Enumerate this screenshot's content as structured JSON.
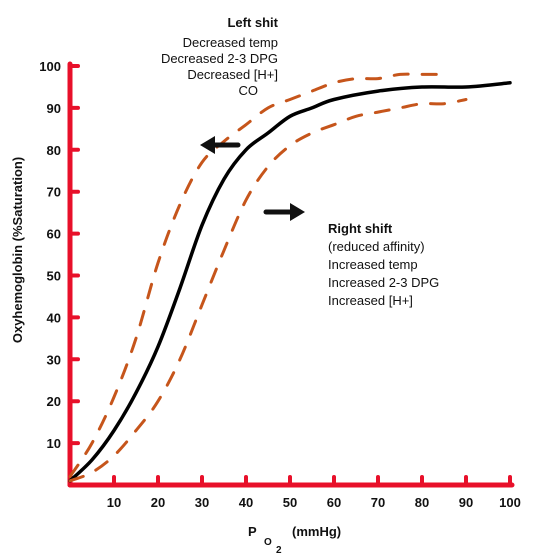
{
  "chart_data": {
    "type": "line",
    "ylabel": "Oxyhemoglobin (%Saturation)",
    "xlabel": {
      "main": "P",
      "subscript": "O",
      "sub2": "2",
      "unit": "(mmHg)"
    },
    "xlim": [
      0,
      100
    ],
    "ylim": [
      0,
      100
    ],
    "x_ticks": [
      "10",
      "20",
      "30",
      "40",
      "50",
      "60",
      "70",
      "80",
      "90",
      "100"
    ],
    "y_ticks": [
      "10",
      "20",
      "30",
      "40",
      "50",
      "60",
      "70",
      "80",
      "90",
      "100"
    ],
    "grid": false,
    "axis_color": "#e8102a",
    "series": [
      {
        "style": "solid",
        "color": "#000000",
        "x": [
          0,
          5,
          10,
          15,
          20,
          25,
          30,
          35,
          40,
          45,
          50,
          55,
          60,
          70,
          80,
          90,
          100
        ],
        "y": [
          1,
          6,
          13,
          22,
          33,
          47,
          62,
          73,
          80,
          84,
          88,
          90,
          92,
          94,
          95,
          95,
          96
        ]
      },
      {
        "style": "dashed",
        "color": "#c6551b",
        "x": [
          0,
          5,
          10,
          15,
          20,
          25,
          30,
          35,
          40,
          45,
          50,
          55,
          60,
          65,
          70,
          75,
          80,
          85
        ],
        "y": [
          2,
          10,
          21,
          35,
          53,
          67,
          77,
          82,
          86,
          90,
          92,
          94,
          96,
          97,
          97,
          98,
          98,
          98
        ]
      },
      {
        "style": "dashed",
        "color": "#c6551b",
        "x": [
          0,
          5,
          10,
          15,
          20,
          25,
          30,
          35,
          40,
          45,
          50,
          55,
          60,
          65,
          70,
          75,
          80,
          85,
          90
        ],
        "y": [
          1,
          3,
          7,
          13,
          20,
          30,
          43,
          56,
          68,
          76,
          81,
          84,
          86,
          88,
          89,
          90,
          91,
          91,
          92
        ]
      }
    ],
    "annotations": {
      "left_shift": {
        "heading": "Left shit",
        "lines": [
          "Decreased temp",
          "Decreased 2-3 DPG",
          "Decreased [H+]",
          "CO"
        ]
      },
      "right_shift": {
        "heading": "Right shift",
        "lines": [
          "(reduced affinity)",
          "Increased temp",
          "Increased 2-3 DPG",
          "Increased [H+]"
        ]
      }
    }
  }
}
